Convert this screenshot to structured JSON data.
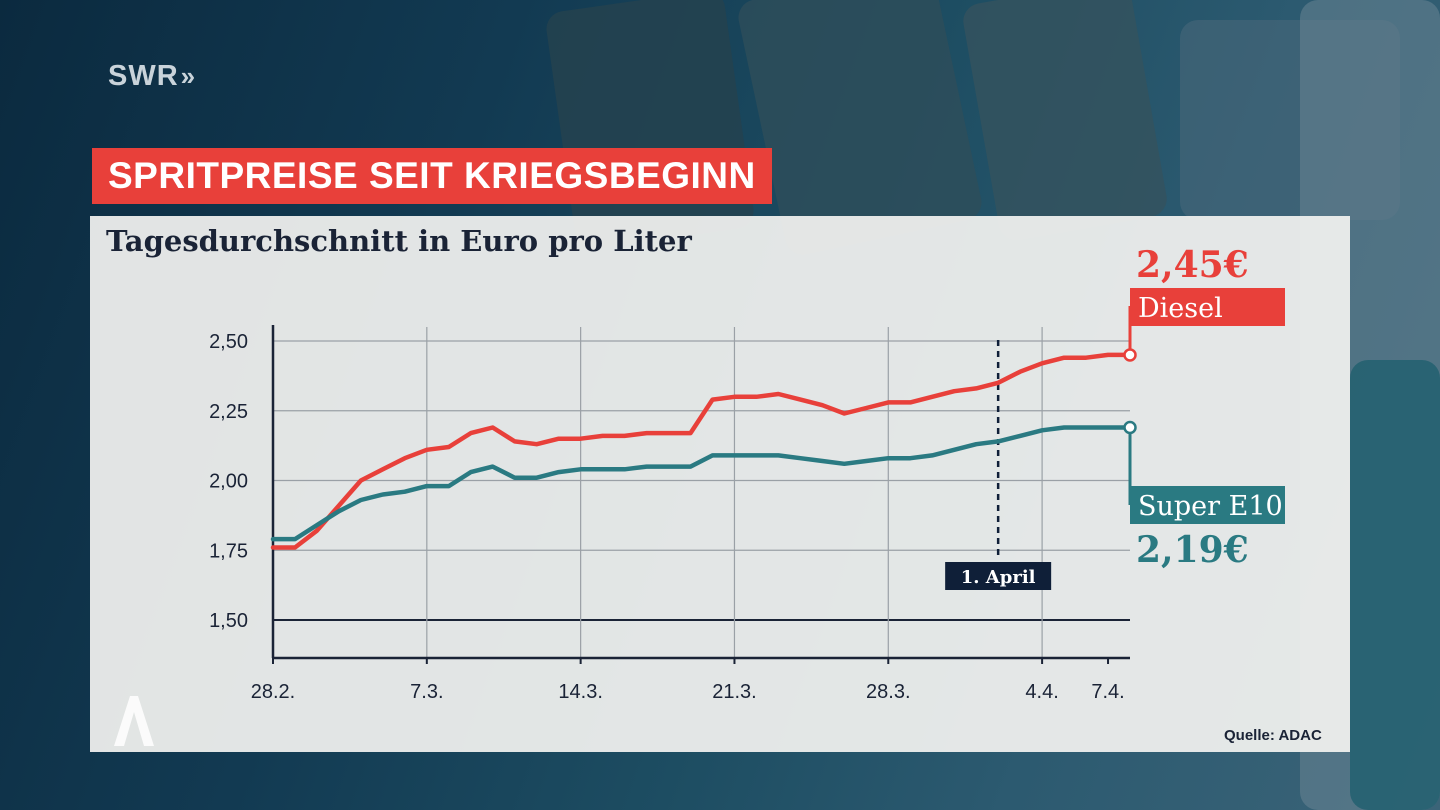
{
  "brand": {
    "name": "SWR",
    "chevrons": "»"
  },
  "headline": "SPRITPREISE SEIT KRIEGSBEGINN",
  "subtitle": "Tagesdurchschnitt in Euro pro Liter",
  "source": "Quelle: ADAC",
  "colors": {
    "diesel": "#e8403a",
    "e10": "#2a7a82",
    "headline_bg": "#e8403a",
    "marker_bg": "#0f1f38"
  },
  "chart_data": {
    "type": "line",
    "title": "Tagesdurchschnitt in Euro pro Liter",
    "xlabel": "",
    "ylabel": "",
    "x_ticks": [
      "28.2.",
      "7.3.",
      "14.3.",
      "21.3.",
      "28.3.",
      "4.4.",
      "7.4."
    ],
    "y_ticks": [
      "2,50",
      "2,25",
      "2,00",
      "1,75",
      "1,50"
    ],
    "ylim": [
      1.5,
      2.5
    ],
    "grid": "horizontal and vertical",
    "x_days": [
      0,
      1,
      2,
      3,
      4,
      5,
      6,
      7,
      8,
      9,
      10,
      11,
      12,
      13,
      14,
      15,
      16,
      17,
      18,
      19,
      20,
      21,
      22,
      23,
      24,
      25,
      26,
      27,
      28,
      29,
      30,
      31,
      32,
      33,
      34,
      35,
      36,
      37,
      38,
      39
    ],
    "series": [
      {
        "name": "Diesel",
        "value_label": "2,45€",
        "values": [
          1.76,
          1.76,
          1.82,
          1.91,
          2.0,
          2.04,
          2.08,
          2.11,
          2.12,
          2.17,
          2.19,
          2.14,
          2.13,
          2.15,
          2.15,
          2.16,
          2.16,
          2.17,
          2.17,
          2.17,
          2.29,
          2.3,
          2.3,
          2.31,
          2.29,
          2.27,
          2.24,
          2.26,
          2.28,
          2.28,
          2.3,
          2.32,
          2.33,
          2.35,
          2.39,
          2.42,
          2.44,
          2.44,
          2.45,
          2.45
        ]
      },
      {
        "name": "Super E10",
        "value_label": "2,19€",
        "values": [
          1.79,
          1.79,
          1.84,
          1.89,
          1.93,
          1.95,
          1.96,
          1.98,
          1.98,
          2.03,
          2.05,
          2.01,
          2.01,
          2.03,
          2.04,
          2.04,
          2.04,
          2.05,
          2.05,
          2.05,
          2.09,
          2.09,
          2.09,
          2.09,
          2.08,
          2.07,
          2.06,
          2.07,
          2.08,
          2.08,
          2.09,
          2.11,
          2.13,
          2.14,
          2.16,
          2.18,
          2.19,
          2.19,
          2.19,
          2.19
        ]
      }
    ],
    "annotation": {
      "label": "1. April",
      "x_day": 33
    }
  }
}
